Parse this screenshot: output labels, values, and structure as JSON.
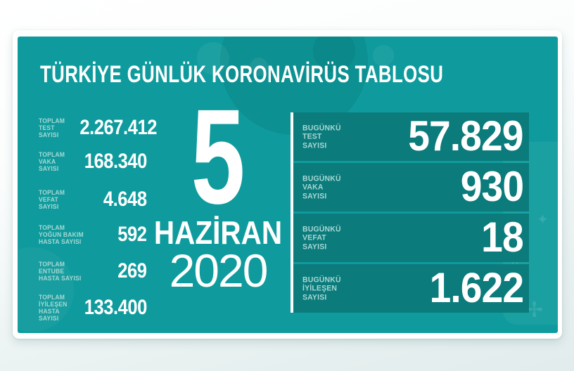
{
  "title": "TÜRKİYE GÜNLÜK KORONAVİRÜS TABLOSU",
  "date": {
    "day": "5",
    "month": "HAZİRAN",
    "year": "2020"
  },
  "totals": [
    {
      "label": "TOPLAM\nTEST\nSAYISI",
      "value": "2.267.412"
    },
    {
      "label": "TOPLAM\nVAKA\nSAYISI",
      "value": "168.340"
    },
    {
      "label": "TOPLAM\nVEFAT\nSAYISI",
      "value": "4.648"
    },
    {
      "label": "TOPLAM\nYOĞUN BAKIM\nHASTA SAYISI",
      "value": "592"
    },
    {
      "label": "TOPLAM\nENTUBE\nHASTA SAYISI",
      "value": "269"
    },
    {
      "label": "TOPLAM\nİYİLEŞEN\nHASTA SAYISI",
      "value": "133.400"
    }
  ],
  "daily": [
    {
      "label": "BUGÜNKÜ\nTEST\nSAYISI",
      "value": "57.829"
    },
    {
      "label": "BUGÜNKÜ\nVAKA\nSAYISI",
      "value": "930"
    },
    {
      "label": "BUGÜNKÜ\nVEFAT\nSAYISI",
      "value": "18"
    },
    {
      "label": "BUGÜNKÜ\nİYİLEŞEN\nSAYISI",
      "value": "1.622"
    }
  ],
  "colors": {
    "card_teal": "#0f9b9d",
    "box_dark_teal": "#0b7b7b",
    "label_light_teal": "#a7d8d4",
    "text_white": "#ffffff",
    "page_background": "#e9f1f1"
  },
  "decorations": {
    "star_icon": "✶",
    "crescent_icon": "☾",
    "star_small_icon": "✦",
    "sparkle_icon": "✢"
  },
  "chart_data": {
    "type": "table",
    "title": "TÜRKİYE GÜNLÜK KORONAVİRÜS TABLOSU",
    "date": "5 HAZİRAN 2020",
    "rows": [
      {
        "label": "TOPLAM TEST SAYISI",
        "value": 2267412
      },
      {
        "label": "TOPLAM VAKA SAYISI",
        "value": 168340
      },
      {
        "label": "TOPLAM VEFAT SAYISI",
        "value": 4648
      },
      {
        "label": "TOPLAM YOĞUN BAKIM HASTA SAYISI",
        "value": 592
      },
      {
        "label": "TOPLAM ENTUBE HASTA SAYISI",
        "value": 269
      },
      {
        "label": "TOPLAM İYİLEŞEN HASTA SAYISI",
        "value": 133400
      },
      {
        "label": "BUGÜNKÜ TEST SAYISI",
        "value": 57829
      },
      {
        "label": "BUGÜNKÜ VAKA SAYISI",
        "value": 930
      },
      {
        "label": "BUGÜNKÜ VEFAT SAYISI",
        "value": 18
      },
      {
        "label": "BUGÜNKÜ İYİLEŞEN SAYISI",
        "value": 1622
      }
    ]
  }
}
